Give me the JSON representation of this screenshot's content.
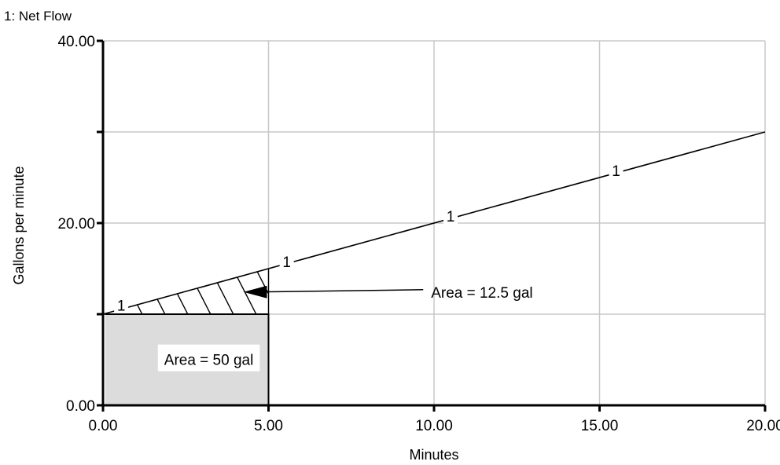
{
  "chart_data": {
    "type": "line",
    "title": "1: Net Flow",
    "xlabel": "Minutes",
    "ylabel": "Gallons per minute",
    "xlim": [
      0,
      20
    ],
    "ylim": [
      0,
      40
    ],
    "x_ticks": [
      0,
      5,
      10,
      15,
      20
    ],
    "x_tick_labels": [
      "0.00",
      "5.00",
      "10.00",
      "15.00",
      "20.00"
    ],
    "y_ticks": [
      0,
      10,
      20,
      30,
      40
    ],
    "y_tick_labels": [
      "0.00",
      "",
      "20.00",
      "",
      "40.00"
    ],
    "grid": true,
    "series": [
      {
        "name": "1",
        "x": [
          0,
          20
        ],
        "y": [
          10,
          30
        ]
      }
    ],
    "series_markers": [
      {
        "x": 0.55,
        "y": 10.8,
        "label": "1"
      },
      {
        "x": 5.55,
        "y": 15.6,
        "label": "1"
      },
      {
        "x": 10.5,
        "y": 20.6,
        "label": "1"
      },
      {
        "x": 15.5,
        "y": 25.6,
        "label": "1"
      }
    ],
    "shaded_areas": [
      {
        "kind": "rectangle",
        "x_range": [
          0,
          5
        ],
        "y_range": [
          0,
          10
        ],
        "label": "Area = 50 gal",
        "label_pos": {
          "x": 1.8,
          "y": 4.6
        }
      },
      {
        "kind": "triangle-hatched",
        "x_range": [
          0,
          5
        ],
        "y_bottom": 10,
        "y_top_start": 10,
        "y_top_end": 15,
        "label": "Area = 12.5 gal",
        "label_pos": {
          "x": 10.1,
          "y": 12.0
        }
      }
    ]
  }
}
